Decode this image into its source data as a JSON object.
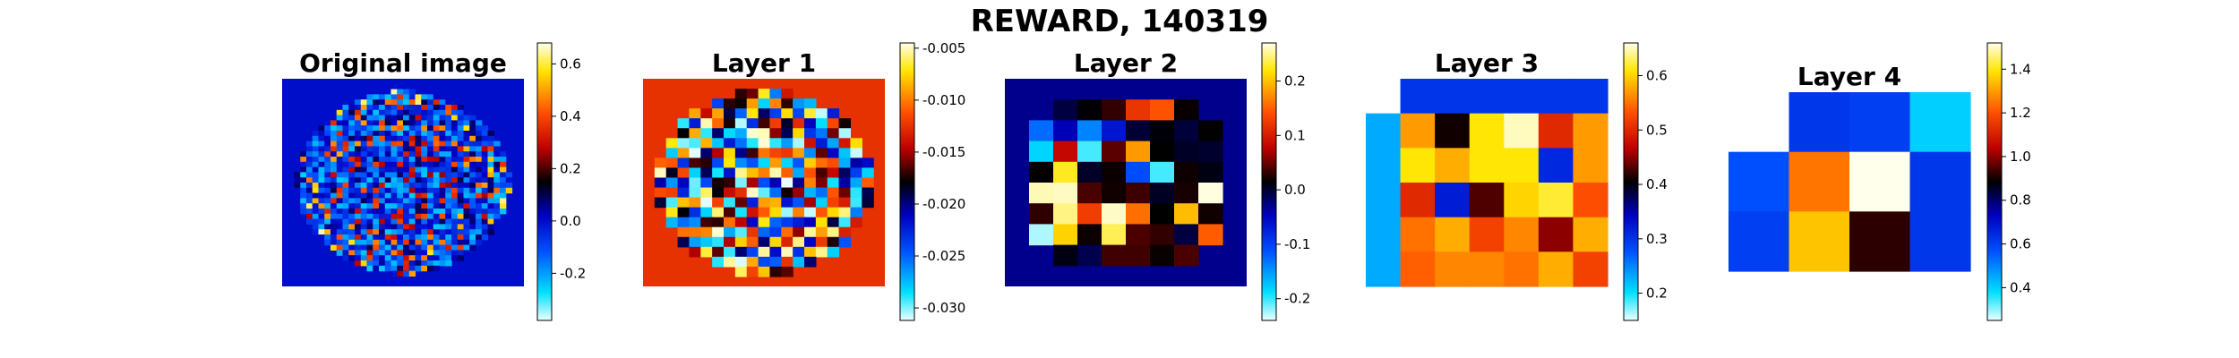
{
  "figure": {
    "suptitle": "REWARD, 140319"
  },
  "chart_data": [
    {
      "type": "heatmap",
      "title": "Original image",
      "colormap": "jet-white-ends",
      "vmin": -0.38,
      "vmax": 0.68,
      "background_value": 0.0,
      "colorbar_ticks": [
        "-0.2",
        "0.0",
        "0.2",
        "0.4",
        "0.6"
      ],
      "colorbar_tick_values": [
        -0.2,
        0.0,
        0.2,
        0.4,
        0.6
      ],
      "grid_size": [
        40,
        40
      ],
      "content": "circular field of mixed positive/negative pixel values on a uniform blue background"
    },
    {
      "type": "heatmap",
      "title": "Layer 1",
      "colormap": "jet-white-ends",
      "vmin": -0.0312,
      "vmax": -0.0045,
      "background_value": -0.0125,
      "colorbar_ticks": [
        "-0.005",
        "-0.010",
        "-0.015",
        "-0.020",
        "-0.025",
        "-0.030"
      ],
      "colorbar_tick_values": [
        -0.005,
        -0.01,
        -0.015,
        -0.02,
        -0.025,
        -0.03
      ],
      "grid_size": [
        21,
        21
      ],
      "content": "circular field of mixed values on a uniform dark red background"
    },
    {
      "type": "heatmap",
      "title": "Layer 2",
      "colormap": "jet-white-ends",
      "vmin": -0.24,
      "vmax": 0.27,
      "background_value": -0.03,
      "colorbar_ticks": [
        "0.2",
        "0.1",
        "0.0",
        "-0.1",
        "-0.2"
      ],
      "colorbar_tick_values": [
        0.2,
        0.1,
        0.0,
        -0.1,
        -0.2
      ],
      "grid_size": [
        10,
        10
      ],
      "content": "circular field of mixed values on a near-black background"
    },
    {
      "type": "heatmap",
      "title": "Layer 3",
      "colormap": "jet-white-ends",
      "vmin": 0.15,
      "vmax": 0.66,
      "colorbar_ticks": [
        "0.6",
        "0.5",
        "0.4",
        "0.3",
        "0.2"
      ],
      "colorbar_tick_values": [
        0.6,
        0.5,
        0.4,
        0.3,
        0.2
      ],
      "rows": 6,
      "cols": 7,
      "values": [
        [
          null,
          0.3,
          0.3,
          0.3,
          0.3,
          0.3,
          0.3
        ],
        [
          0.23,
          0.57,
          0.41,
          0.61,
          0.65,
          0.5,
          0.57
        ],
        [
          0.23,
          0.61,
          0.58,
          0.61,
          0.61,
          0.31,
          0.57
        ],
        [
          0.23,
          0.5,
          0.32,
          0.43,
          0.6,
          0.62,
          0.53
        ],
        [
          0.23,
          0.55,
          0.58,
          0.52,
          0.56,
          0.45,
          0.58
        ],
        [
          0.23,
          0.54,
          0.56,
          0.56,
          0.55,
          0.58,
          0.52
        ]
      ]
    },
    {
      "type": "heatmap",
      "title": "Layer 4",
      "colormap": "jet-white-ends",
      "vmin": 0.25,
      "vmax": 1.52,
      "colorbar_ticks": [
        "1.4",
        "1.2",
        "1.0",
        "0.8",
        "0.6",
        "0.4"
      ],
      "colorbar_tick_values": [
        1.4,
        1.2,
        1.0,
        0.8,
        0.6,
        0.4
      ],
      "rows": 3,
      "cols": 4,
      "values": [
        [
          null,
          0.62,
          0.6,
          0.4
        ],
        [
          0.57,
          1.25,
          1.52,
          0.62
        ],
        [
          0.6,
          1.35,
          0.92,
          0.62
        ]
      ]
    }
  ]
}
